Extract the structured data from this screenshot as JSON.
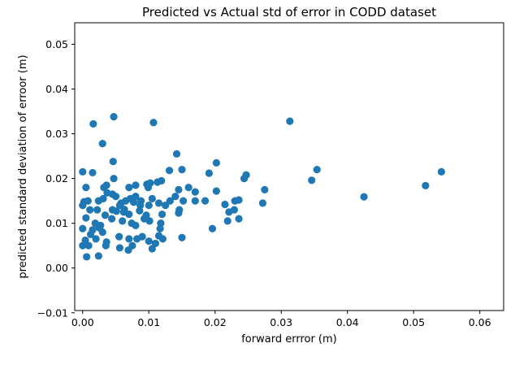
{
  "chart_data": {
    "type": "scatter",
    "title": "Predicted vs Actual std of error in CODD dataset",
    "xlabel": "forward errror (m)",
    "ylabel": "predicted standard deviation of erroor (m)",
    "xlim": [
      -0.0012,
      0.0636
    ],
    "ylim": [
      -0.0095,
      0.0548
    ],
    "xticks": [
      0.0,
      0.01,
      0.02,
      0.03,
      0.04,
      0.05,
      0.06
    ],
    "xtick_labels": [
      "0.00",
      "0.01",
      "0.02",
      "0.03",
      "0.04",
      "0.05",
      "0.06"
    ],
    "yticks": [
      -0.01,
      0.0,
      0.01,
      0.02,
      0.03,
      0.04,
      0.05
    ],
    "ytick_labels": [
      "−0.01",
      "0.00",
      "0.01",
      "0.02",
      "0.03",
      "0.04",
      "0.05"
    ],
    "grid": false,
    "legend": "none",
    "series": [
      {
        "color": "#1f77b4",
        "points": [
          [
            0.0016,
            0.0322
          ],
          [
            0.0047,
            0.0338
          ],
          [
            0.0107,
            0.0325
          ],
          [
            0.0313,
            0.0328
          ],
          [
            0.003,
            0.0278
          ],
          [
            0.0046,
            0.0238
          ],
          [
            0.0142,
            0.0255
          ],
          [
            0.0202,
            0.0235
          ],
          [
            0.0191,
            0.0212
          ],
          [
            0.0354,
            0.022
          ],
          [
            0.0542,
            0.0215
          ],
          [
            0.0,
            0.0215
          ],
          [
            0.0015,
            0.0213
          ],
          [
            0.0131,
            0.0218
          ],
          [
            0.015,
            0.022
          ],
          [
            0.0247,
            0.0208
          ],
          [
            0.0244,
            0.02
          ],
          [
            0.0346,
            0.0196
          ],
          [
            0.0518,
            0.0184
          ],
          [
            0.0425,
            0.0159
          ],
          [
            0.0047,
            0.02
          ],
          [
            0.008,
            0.0185
          ],
          [
            0.0097,
            0.0187
          ],
          [
            0.0119,
            0.0195
          ],
          [
            0.0102,
            0.019
          ],
          [
            0.0113,
            0.0192
          ],
          [
            0.0275,
            0.0175
          ],
          [
            0.023,
            0.015
          ],
          [
            0.0272,
            0.0145
          ],
          [
            0.0005,
            0.018
          ],
          [
            0.0032,
            0.018
          ],
          [
            0.0036,
            0.0185
          ],
          [
            0.007,
            0.018
          ],
          [
            0.016,
            0.018
          ],
          [
            0.017,
            0.017
          ],
          [
            0.0145,
            0.0175
          ],
          [
            0.0202,
            0.0172
          ],
          [
            0.0002,
            0.0148
          ],
          [
            0.0008,
            0.015
          ],
          [
            0.0024,
            0.015
          ],
          [
            0.0031,
            0.0155
          ],
          [
            0.0045,
            0.0165
          ],
          [
            0.005,
            0.016
          ],
          [
            0.0058,
            0.0145
          ],
          [
            0.0065,
            0.015
          ],
          [
            0.0072,
            0.0155
          ],
          [
            0.008,
            0.016
          ],
          [
            0.0088,
            0.015
          ],
          [
            0.01,
            0.014
          ],
          [
            0.0105,
            0.0155
          ],
          [
            0.0115,
            0.0145
          ],
          [
            0.0125,
            0.014
          ],
          [
            0.014,
            0.016
          ],
          [
            0.0152,
            0.015
          ],
          [
            0.017,
            0.015
          ],
          [
            0.0185,
            0.015
          ],
          [
            0.0215,
            0.0142
          ],
          [
            0.0236,
            0.0152
          ],
          [
            0.0,
            0.014
          ],
          [
            0.0011,
            0.013
          ],
          [
            0.0022,
            0.013
          ],
          [
            0.0034,
            0.0118
          ],
          [
            0.0045,
            0.013
          ],
          [
            0.0056,
            0.014
          ],
          [
            0.0062,
            0.0125
          ],
          [
            0.007,
            0.012
          ],
          [
            0.0086,
            0.0128
          ],
          [
            0.0096,
            0.0118
          ],
          [
            0.012,
            0.012
          ],
          [
            0.0146,
            0.013
          ],
          [
            0.0145,
            0.0123
          ],
          [
            0.0221,
            0.0125
          ],
          [
            0.0229,
            0.013
          ],
          [
            0.0219,
            0.0105
          ],
          [
            0.0236,
            0.011
          ],
          [
            0.0005,
            0.0112
          ],
          [
            0.0019,
            0.01
          ],
          [
            0.0027,
            0.0095
          ],
          [
            0.0044,
            0.011
          ],
          [
            0.006,
            0.0105
          ],
          [
            0.0074,
            0.01
          ],
          [
            0.008,
            0.0095
          ],
          [
            0.0093,
            0.011
          ],
          [
            0.0101,
            0.0105
          ],
          [
            0.0118,
            0.01
          ],
          [
            0.0196,
            0.0088
          ],
          [
            0.0,
            0.0088
          ],
          [
            0.0015,
            0.0085
          ],
          [
            0.0025,
            0.009
          ],
          [
            0.003,
            0.008
          ],
          [
            0.0012,
            0.0075
          ],
          [
            0.002,
            0.0065
          ],
          [
            0.0036,
            0.0058
          ],
          [
            0.0055,
            0.007
          ],
          [
            0.007,
            0.0065
          ],
          [
            0.0082,
            0.0065
          ],
          [
            0.009,
            0.007
          ],
          [
            0.01,
            0.006
          ],
          [
            0.011,
            0.0055
          ],
          [
            0.0121,
            0.0065
          ],
          [
            0.015,
            0.0068
          ],
          [
            0.0,
            0.005
          ],
          [
            0.0009,
            0.005
          ],
          [
            0.0035,
            0.005
          ],
          [
            0.0056,
            0.0045
          ],
          [
            0.0069,
            0.004
          ],
          [
            0.0075,
            0.005
          ],
          [
            0.0105,
            0.0043
          ],
          [
            0.0115,
            0.0072
          ],
          [
            0.0006,
            0.0025
          ],
          [
            0.0024,
            0.0027
          ],
          [
            0.0004,
            0.0062
          ],
          [
            0.0117,
            0.0088
          ],
          [
            0.0063,
            0.0131
          ],
          [
            0.0051,
            0.0127
          ],
          [
            0.0087,
            0.014
          ],
          [
            0.0037,
            0.0168
          ],
          [
            0.0132,
            0.015
          ],
          [
            0.0099,
            0.018
          ],
          [
            0.0077,
            0.0147
          ]
        ]
      }
    ]
  }
}
